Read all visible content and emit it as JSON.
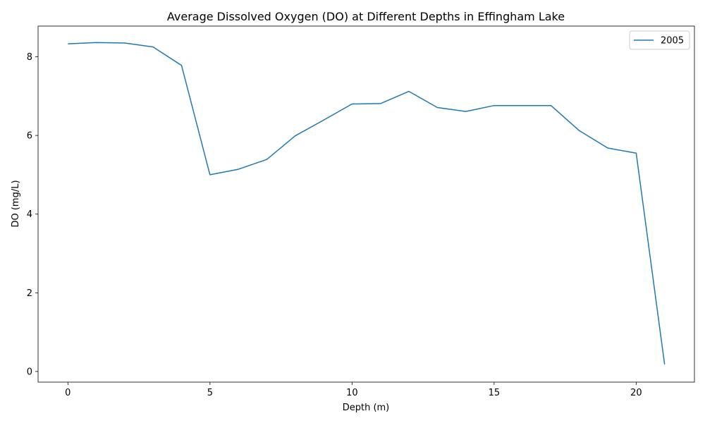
{
  "chart_data": {
    "type": "line",
    "title": "Average Dissolved Oxygen (DO) at Different Depths in Effingham Lake",
    "xlabel": "Depth (m)",
    "ylabel": "DO (mg/L)",
    "xlim": [
      -1.05,
      22.05
    ],
    "ylim": [
      -0.27,
      8.78
    ],
    "xticks": [
      0,
      5,
      10,
      15,
      20
    ],
    "yticks": [
      0,
      2,
      4,
      6,
      8
    ],
    "grid": false,
    "legend_position": "top-right",
    "colors": {
      "series": "#1f77b4"
    },
    "series": [
      {
        "name": "2005",
        "x": [
          0,
          1,
          2,
          3,
          4,
          5,
          6,
          7,
          8,
          9,
          10,
          11,
          12,
          13,
          14,
          15,
          16,
          17,
          18,
          19,
          20,
          21
        ],
        "values": [
          8.33,
          8.36,
          8.35,
          8.25,
          7.78,
          5.0,
          5.14,
          5.39,
          5.99,
          6.39,
          6.8,
          6.81,
          7.12,
          6.71,
          6.61,
          6.76,
          6.76,
          6.76,
          6.12,
          5.68,
          5.55,
          0.18
        ]
      }
    ]
  }
}
